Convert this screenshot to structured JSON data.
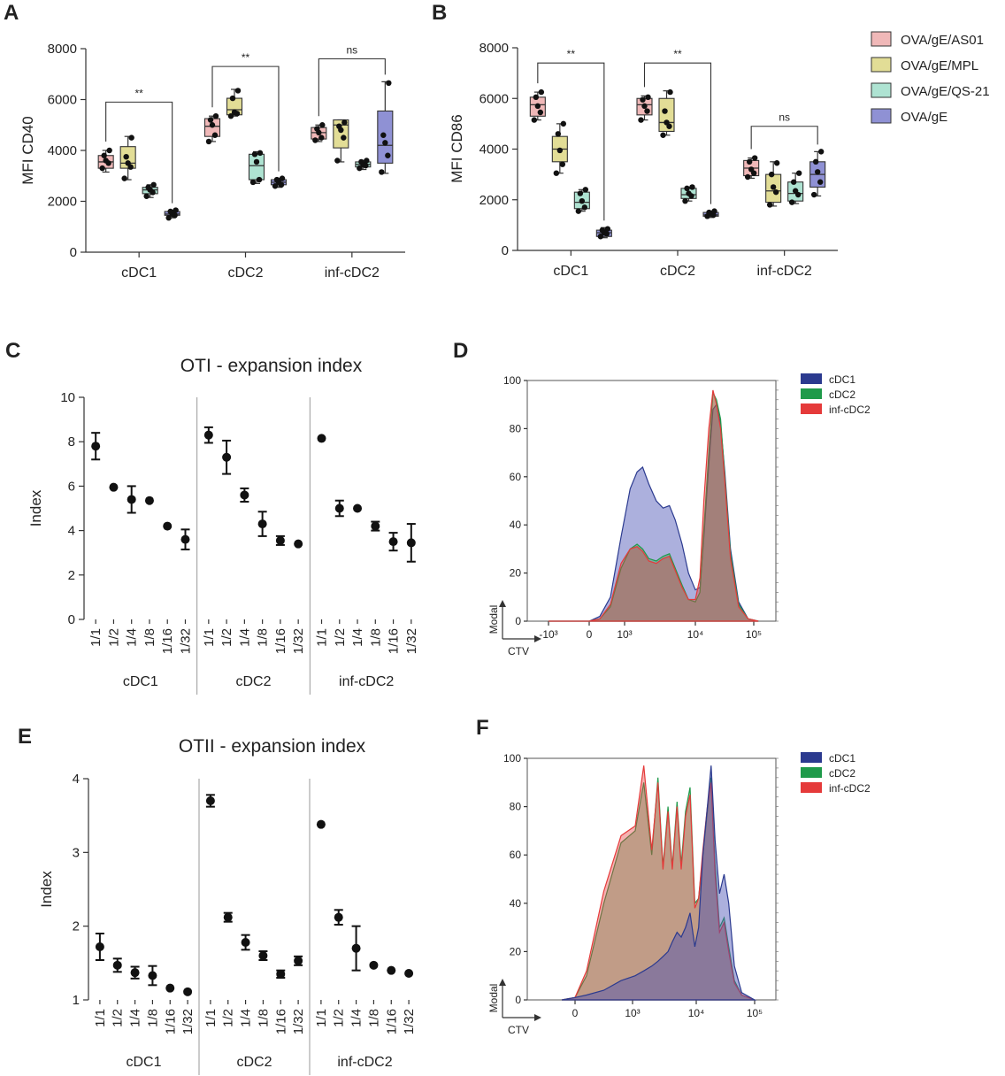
{
  "panels": {
    "A": "A",
    "B": "B",
    "C": "C",
    "D": "D",
    "E": "E",
    "F": "F"
  },
  "legend_top": {
    "items": [
      {
        "label": "OVA/gE/AS01",
        "color": "#f0b8b8"
      },
      {
        "label": "OVA/gE/MPL",
        "color": "#e2dd96"
      },
      {
        "label": "OVA/gE/QS-21",
        "color": "#aee3d2"
      },
      {
        "label": "OVA/gE",
        "color": "#8f91d4"
      }
    ]
  },
  "legend_hist": {
    "items": [
      {
        "label": "cDC1",
        "color": "#2b3a8f"
      },
      {
        "label": "cDC2",
        "color": "#1f9a4a"
      },
      {
        "label": "inf-cDC2",
        "color": "#e53a3a"
      }
    ]
  },
  "hist_axis": {
    "ylabel": "Modal",
    "xlabel": "CTV"
  },
  "chart_data": [
    {
      "id": "A",
      "type": "box",
      "ylabel": "MFI CD40",
      "ylim": [
        0,
        8000
      ],
      "yticks": [
        "0",
        "2000",
        "4000",
        "6000",
        "8000"
      ],
      "groups": [
        "cDC1",
        "cDC2",
        "inf-cDC2"
      ],
      "series": [
        "OVA/gE/AS01",
        "OVA/gE/MPL",
        "OVA/gE/QS-21",
        "OVA/gE"
      ],
      "boxes": [
        [
          [
            3150,
            3300,
            3550,
            3800,
            4000
          ],
          [
            2850,
            3300,
            3500,
            4150,
            4550
          ],
          [
            2150,
            2300,
            2450,
            2550,
            2650
          ],
          [
            1350,
            1450,
            1500,
            1600,
            1650
          ]
        ],
        [
          [
            4350,
            4550,
            4950,
            5250,
            5350
          ],
          [
            5350,
            5400,
            5600,
            6050,
            6400
          ],
          [
            2700,
            2850,
            3400,
            3850,
            3950
          ],
          [
            2550,
            2650,
            2750,
            2850,
            2900
          ]
        ],
        [
          [
            4350,
            4450,
            4700,
            4900,
            5000
          ],
          [
            3550,
            4100,
            5000,
            5200,
            5200
          ],
          [
            3250,
            3350,
            3450,
            3550,
            3600
          ],
          [
            3100,
            3500,
            4200,
            5550,
            6700
          ]
        ]
      ],
      "points": [
        [
          [
            3300,
            3500,
            3600,
            3800,
            4000
          ],
          [
            2900,
            3350,
            3500,
            3750,
            4500
          ],
          [
            2200,
            2350,
            2450,
            2550,
            2650
          ],
          [
            1350,
            1450,
            1500,
            1600,
            1650
          ]
        ],
        [
          [
            4350,
            4600,
            5000,
            5200,
            5350
          ],
          [
            5350,
            5450,
            5500,
            6050,
            6350
          ],
          [
            2750,
            2850,
            3550,
            3850,
            3900
          ],
          [
            2600,
            2650,
            2750,
            2850,
            2900
          ]
        ],
        [
          [
            4400,
            4500,
            4700,
            4850,
            5000
          ],
          [
            3600,
            4500,
            4800,
            4950,
            5100
          ],
          [
            3300,
            3400,
            3450,
            3550,
            3600
          ],
          [
            3150,
            3800,
            4300,
            4600,
            6650
          ]
        ]
      ],
      "brackets": [
        {
          "from": [
            0,
            0
          ],
          "to": [
            0,
            3
          ],
          "y": 5900,
          "label": "**"
        },
        {
          "from": [
            1,
            0
          ],
          "to": [
            1,
            3
          ],
          "y": 7300,
          "label": "**"
        },
        {
          "from": [
            2,
            0
          ],
          "to": [
            2,
            3
          ],
          "y": 7600,
          "label": "ns"
        }
      ]
    },
    {
      "id": "B",
      "type": "box",
      "ylabel": "MFI CD86",
      "ylim": [
        0,
        8000
      ],
      "yticks": [
        "0",
        "2000",
        "4000",
        "6000",
        "8000"
      ],
      "groups": [
        "cDC1",
        "cDC2",
        "inf-cDC2"
      ],
      "series": [
        "OVA/gE/AS01",
        "OVA/gE/MPL",
        "OVA/gE/QS-21",
        "OVA/gE"
      ],
      "boxes": [
        [
          [
            5150,
            5300,
            5750,
            6050,
            6250
          ],
          [
            3050,
            3500,
            4000,
            4500,
            5000
          ],
          [
            1550,
            1650,
            1900,
            2300,
            2400
          ],
          [
            500,
            550,
            700,
            800,
            900
          ]
        ],
        [
          [
            5150,
            5350,
            5750,
            6000,
            6100
          ],
          [
            4550,
            4700,
            5050,
            6000,
            6300
          ],
          [
            1950,
            2050,
            2200,
            2450,
            2500
          ],
          [
            1300,
            1350,
            1400,
            1500,
            1550
          ]
        ],
        [
          [
            2850,
            2950,
            3250,
            3550,
            3650
          ],
          [
            1750,
            1900,
            2350,
            3000,
            3500
          ],
          [
            1850,
            1950,
            2250,
            2700,
            3050
          ],
          [
            2150,
            2500,
            3000,
            3500,
            3900
          ]
        ]
      ],
      "points": [
        [
          [
            5150,
            5450,
            5700,
            6050,
            6250
          ],
          [
            3050,
            3400,
            3950,
            4600,
            5000
          ],
          [
            1550,
            1700,
            1950,
            2250,
            2400
          ],
          [
            550,
            650,
            700,
            800,
            850
          ]
        ],
        [
          [
            5150,
            5500,
            5700,
            5950,
            6050
          ],
          [
            4550,
            4900,
            5050,
            5500,
            6250
          ],
          [
            1950,
            2150,
            2250,
            2450,
            2500
          ],
          [
            1350,
            1400,
            1450,
            1500,
            1550
          ]
        ],
        [
          [
            2900,
            3050,
            3200,
            3500,
            3650
          ],
          [
            1800,
            2300,
            2500,
            3000,
            3450
          ],
          [
            1900,
            2200,
            2350,
            2700,
            3050
          ],
          [
            2200,
            2700,
            3100,
            3500,
            3900
          ]
        ]
      ],
      "brackets": [
        {
          "from": [
            0,
            0
          ],
          "to": [
            0,
            3
          ],
          "y": 7400,
          "label": "**"
        },
        {
          "from": [
            1,
            0
          ],
          "to": [
            1,
            3
          ],
          "y": 7400,
          "label": "**"
        },
        {
          "from": [
            2,
            0
          ],
          "to": [
            2,
            3
          ],
          "y": 4900,
          "label": "ns"
        }
      ]
    },
    {
      "id": "C",
      "type": "scatter",
      "title": "OTI - expansion index",
      "ylabel": "Index",
      "ylim": [
        0,
        10
      ],
      "yticks": [
        "0",
        "2",
        "4",
        "6",
        "8",
        "10"
      ],
      "groups": [
        "cDC1",
        "cDC2",
        "inf-cDC2"
      ],
      "categories": [
        "1/1",
        "1/2",
        "1/4",
        "1/8",
        "1/16",
        "1/32"
      ],
      "series": [
        {
          "name": "cDC1",
          "mean": [
            7.8,
            5.95,
            5.4,
            5.35,
            4.2,
            3.6
          ],
          "err": [
            0.6,
            0,
            0.6,
            0,
            0,
            0.45
          ]
        },
        {
          "name": "cDC2",
          "mean": [
            8.3,
            7.3,
            5.6,
            4.3,
            3.55,
            3.4
          ],
          "err": [
            0.35,
            0.75,
            0.3,
            0.55,
            0.2,
            0
          ]
        },
        {
          "name": "inf-cDC2",
          "mean": [
            8.15,
            5.0,
            5.0,
            4.2,
            3.5,
            3.45
          ],
          "err": [
            0,
            0.35,
            0,
            0.2,
            0.4,
            0.85
          ]
        }
      ]
    },
    {
      "id": "E",
      "type": "scatter",
      "title": "OTII - expansion index",
      "ylabel": "Index",
      "ylim": [
        1,
        4
      ],
      "yticks": [
        "1",
        "2",
        "3",
        "4"
      ],
      "groups": [
        "cDC1",
        "cDC2",
        "inf-cDC2"
      ],
      "categories": [
        "1/1",
        "1/2",
        "1/4",
        "1/8",
        "1/16",
        "1/32"
      ],
      "series": [
        {
          "name": "cDC1",
          "mean": [
            1.72,
            1.47,
            1.37,
            1.33,
            1.16,
            1.11
          ],
          "err": [
            0.18,
            0.09,
            0.08,
            0.13,
            0,
            0
          ]
        },
        {
          "name": "cDC2",
          "mean": [
            3.7,
            2.12,
            1.78,
            1.6,
            1.35,
            1.53
          ],
          "err": [
            0.08,
            0.06,
            0.1,
            0.06,
            0.05,
            0.06
          ]
        },
        {
          "name": "inf-cDC2",
          "mean": [
            3.38,
            2.12,
            1.7,
            1.47,
            1.4,
            1.36
          ],
          "err": [
            0,
            0.1,
            0.3,
            0,
            0,
            0
          ]
        }
      ]
    },
    {
      "id": "D",
      "type": "area",
      "ylabel": "Modal",
      "xlabel": "CTV",
      "ylim": [
        0,
        100
      ],
      "yticks": [
        "0",
        "20",
        "40",
        "60",
        "80",
        "100"
      ],
      "xticks": [
        "-10³",
        "0",
        "10³",
        "10⁴",
        "10⁵"
      ],
      "series": [
        {
          "name": "cDC1",
          "x": [
            -1000,
            -500,
            0,
            300,
            600,
            900,
            1200,
            1500,
            1800,
            2200,
            2800,
            3500,
            4300,
            5200,
            6500,
            8000,
            10000,
            12000,
            14000,
            17000,
            20000,
            23000,
            27000,
            32000,
            40000,
            55000,
            80000,
            120000
          ],
          "y": [
            0,
            0,
            0,
            2,
            10,
            35,
            55,
            62,
            64,
            57,
            50,
            47,
            48,
            42,
            32,
            20,
            13,
            14,
            35,
            65,
            88,
            90,
            82,
            62,
            30,
            8,
            1,
            0
          ]
        },
        {
          "name": "cDC2",
          "x": [
            -1000,
            -500,
            0,
            300,
            600,
            900,
            1200,
            1500,
            1800,
            2200,
            2800,
            3500,
            4300,
            5200,
            6500,
            8000,
            10000,
            12000,
            14000,
            17000,
            20000,
            23000,
            27000,
            32000,
            40000,
            55000,
            80000,
            120000
          ],
          "y": [
            0,
            0,
            0,
            1,
            6,
            22,
            30,
            32,
            30,
            26,
            25,
            27,
            28,
            22,
            15,
            9,
            8,
            12,
            38,
            70,
            95,
            92,
            84,
            60,
            28,
            7,
            1,
            0
          ]
        },
        {
          "name": "inf-cDC2",
          "x": [
            -1000,
            -500,
            0,
            300,
            600,
            900,
            1200,
            1500,
            1800,
            2200,
            2800,
            3500,
            4300,
            5200,
            6500,
            8000,
            10000,
            12000,
            14000,
            17000,
            20000,
            23000,
            27000,
            32000,
            40000,
            55000,
            80000,
            120000
          ],
          "y": [
            0,
            0,
            0,
            1,
            7,
            24,
            30,
            31,
            29,
            25,
            24,
            26,
            27,
            21,
            14,
            9,
            9,
            18,
            50,
            80,
            96,
            90,
            80,
            58,
            26,
            6,
            1,
            0
          ]
        }
      ]
    },
    {
      "id": "F",
      "type": "area",
      "ylabel": "Modal",
      "xlabel": "CTV",
      "ylim": [
        0,
        100
      ],
      "yticks": [
        "0",
        "20",
        "40",
        "60",
        "80",
        "100"
      ],
      "xticks": [
        "0",
        "10³",
        "10⁴",
        "10⁵"
      ],
      "series": [
        {
          "name": "cDC1",
          "x": [
            -500,
            0,
            200,
            500,
            800,
            1100,
            1500,
            2000,
            2500,
            3000,
            3600,
            4200,
            5000,
            5800,
            6800,
            8000,
            9500,
            11000,
            13000,
            15500,
            18000,
            21000,
            25000,
            30000,
            36000,
            45000,
            60000,
            100000
          ],
          "y": [
            0,
            1,
            2,
            4,
            8,
            10,
            12,
            14,
            16,
            18,
            20,
            24,
            28,
            26,
            30,
            36,
            22,
            30,
            60,
            80,
            97,
            66,
            44,
            52,
            40,
            14,
            3,
            0
          ]
        },
        {
          "name": "cDC2",
          "x": [
            -500,
            0,
            200,
            500,
            800,
            1100,
            1500,
            2000,
            2500,
            3000,
            3600,
            4200,
            5000,
            5800,
            6800,
            8000,
            9500,
            11000,
            13000,
            15500,
            18000,
            21000,
            25000,
            30000,
            36000,
            45000,
            60000,
            100000
          ],
          "y": [
            0,
            1,
            10,
            40,
            65,
            70,
            90,
            60,
            92,
            55,
            80,
            55,
            82,
            56,
            78,
            88,
            40,
            42,
            60,
            78,
            92,
            56,
            30,
            34,
            22,
            8,
            2,
            0
          ]
        },
        {
          "name": "inf-cDC2",
          "x": [
            -500,
            0,
            200,
            500,
            800,
            1100,
            1500,
            2000,
            2500,
            3000,
            3600,
            4200,
            5000,
            5800,
            6800,
            8000,
            9500,
            11000,
            13000,
            15500,
            18000,
            21000,
            25000,
            30000,
            36000,
            45000,
            60000,
            100000
          ],
          "y": [
            0,
            1,
            12,
            45,
            68,
            72,
            97,
            62,
            90,
            54,
            78,
            54,
            80,
            54,
            76,
            85,
            38,
            42,
            62,
            80,
            90,
            52,
            28,
            32,
            20,
            7,
            2,
            0
          ]
        }
      ]
    }
  ]
}
